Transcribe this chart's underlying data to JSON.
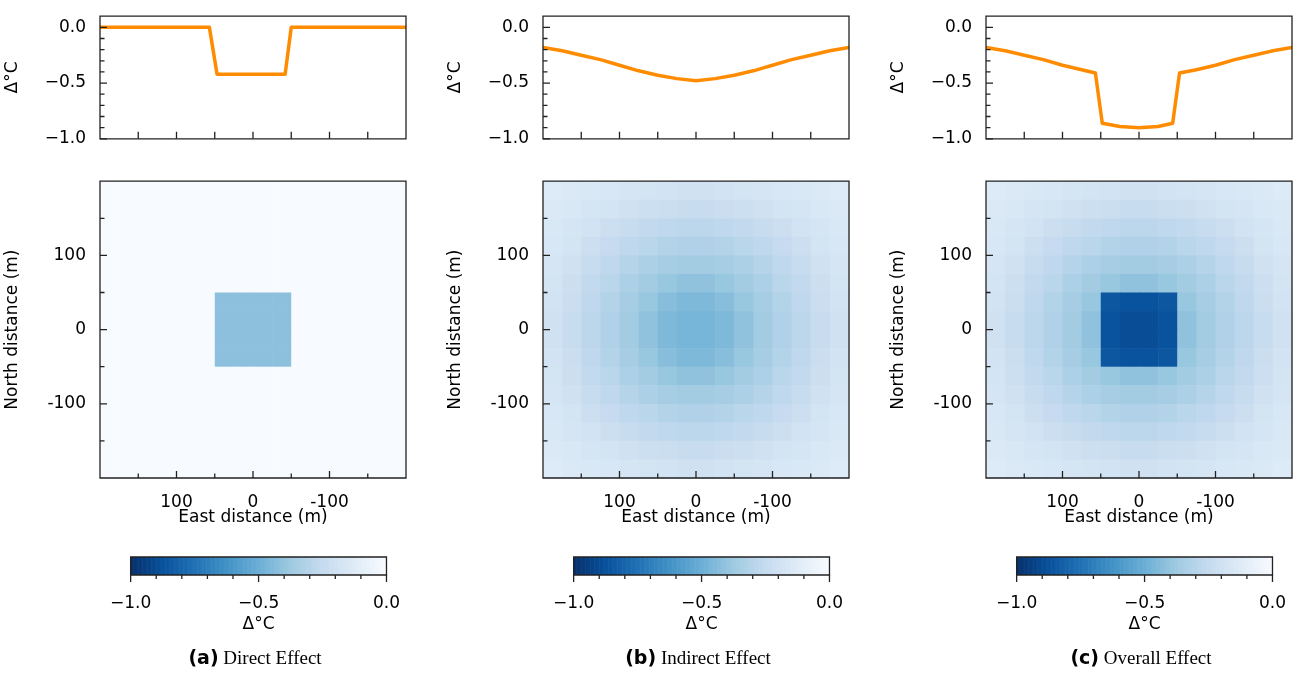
{
  "chart_data": [
    {
      "type": "line",
      "ylabel": "Δ°C",
      "x": [
        200,
        57,
        47,
        -42,
        -50,
        -200
      ],
      "values": [
        0,
        0,
        -0.42,
        -0.42,
        0,
        0
      ],
      "color": "#ff8c00",
      "xlim": [
        200,
        -200
      ],
      "ylim": [
        -1,
        0.1
      ],
      "xticks": [
        {
          "value": 150,
          "label": null
        },
        100,
        {
          "value": 50,
          "label": null
        },
        0,
        {
          "value": -50,
          "label": null
        },
        -100,
        {
          "value": -150,
          "label": null
        }
      ],
      "yticks": [
        {
          "value": 0,
          "label": "0.0"
        },
        {
          "value": -0.1,
          "label": null
        },
        {
          "value": -0.2,
          "label": null
        },
        {
          "value": -0.3,
          "label": null
        },
        {
          "value": -0.4,
          "label": null
        },
        {
          "value": -0.5,
          "label": "−0.5"
        },
        {
          "value": -0.6,
          "label": null
        },
        {
          "value": -0.7,
          "label": null
        },
        {
          "value": -0.8,
          "label": null
        },
        {
          "value": -0.9,
          "label": null
        },
        {
          "value": -1,
          "label": "−1.0"
        }
      ],
      "tick_labels": "y"
    },
    {
      "type": "heatmap",
      "title": "(a) Direct Effect",
      "xlabel": "East distance (m)",
      "ylabel": "North distance (m)",
      "clabel": "Δ°C",
      "x": [
        187.5,
        162.5,
        137.5,
        112.5,
        87.5,
        62.5,
        37.5,
        12.5,
        -12.5,
        -37.5,
        -62.5,
        -87.5,
        -112.5,
        -137.5,
        -162.5,
        -187.5
      ],
      "y": [
        187.5,
        162.5,
        137.5,
        112.5,
        87.5,
        62.5,
        37.5,
        12.5,
        -12.5,
        -37.5,
        -62.5,
        -87.5,
        -112.5,
        -137.5,
        -162.5,
        -187.5
      ],
      "xlim": [
        200,
        -200
      ],
      "ylim": [
        -200,
        200
      ],
      "xticks": [
        {
          "value": 150,
          "label": null
        },
        100,
        {
          "value": 50,
          "label": null
        },
        0,
        {
          "value": -50,
          "label": null
        },
        -100,
        {
          "value": -150,
          "label": null
        }
      ],
      "yticks": [
        {
          "value": 150,
          "label": null
        },
        100,
        {
          "value": 50,
          "label": null
        },
        0,
        {
          "value": -50,
          "label": null
        },
        -100,
        {
          "value": -150,
          "label": null
        }
      ],
      "clim": [
        -1,
        0
      ],
      "cticks": [
        {
          "value": -1,
          "label": "−1.0"
        },
        {
          "value": -0.9,
          "label": null
        },
        {
          "value": -0.8,
          "label": null
        },
        {
          "value": -0.7,
          "label": null
        },
        {
          "value": -0.6,
          "label": null
        },
        {
          "value": -0.5,
          "label": "−0.5"
        },
        {
          "value": -0.4,
          "label": null
        },
        {
          "value": -0.3,
          "label": null
        },
        {
          "value": -0.2,
          "label": null
        },
        {
          "value": -0.1,
          "label": null
        },
        {
          "value": 0,
          "label": "0.0"
        }
      ],
      "cells": [
        [
          0,
          0,
          0,
          0,
          0,
          0,
          0,
          0,
          0,
          0,
          0,
          0,
          0,
          0,
          0,
          0
        ],
        [
          0,
          0,
          0,
          0,
          0,
          0,
          0,
          0,
          0,
          0,
          0,
          0,
          0,
          0,
          0,
          0
        ],
        [
          0,
          0,
          0,
          0,
          0,
          0,
          0,
          0,
          0,
          0,
          0,
          0,
          0,
          0,
          0,
          0
        ],
        [
          0,
          0,
          0,
          0,
          0,
          0,
          0,
          0,
          0,
          0,
          0,
          0,
          0,
          0,
          0,
          0
        ],
        [
          0,
          0,
          0,
          0,
          0,
          0,
          0,
          0,
          0,
          0,
          0,
          0,
          0,
          0,
          0,
          0
        ],
        [
          0,
          0,
          0,
          0,
          0,
          0,
          0,
          0,
          0,
          0,
          0,
          0,
          0,
          0,
          0,
          0
        ],
        [
          0,
          0,
          0,
          0,
          0,
          0,
          -0.42,
          -0.42,
          -0.42,
          -0.42,
          0,
          0,
          0,
          0,
          0,
          0
        ],
        [
          0,
          0,
          0,
          0,
          0,
          0,
          -0.42,
          -0.42,
          -0.42,
          -0.42,
          0,
          0,
          0,
          0,
          0,
          0
        ],
        [
          0,
          0,
          0,
          0,
          0,
          0,
          -0.42,
          -0.42,
          -0.42,
          -0.42,
          0,
          0,
          0,
          0,
          0,
          0
        ],
        [
          0,
          0,
          0,
          0,
          0,
          0,
          -0.42,
          -0.42,
          -0.42,
          -0.42,
          0,
          0,
          0,
          0,
          0,
          0
        ],
        [
          0,
          0,
          0,
          0,
          0,
          0,
          0,
          0,
          0,
          0,
          0,
          0,
          0,
          0,
          0,
          0
        ],
        [
          0,
          0,
          0,
          0,
          0,
          0,
          0,
          0,
          0,
          0,
          0,
          0,
          0,
          0,
          0,
          0
        ],
        [
          0,
          0,
          0,
          0,
          0,
          0,
          0,
          0,
          0,
          0,
          0,
          0,
          0,
          0,
          0,
          0
        ],
        [
          0,
          0,
          0,
          0,
          0,
          0,
          0,
          0,
          0,
          0,
          0,
          0,
          0,
          0,
          0,
          0
        ],
        [
          0,
          0,
          0,
          0,
          0,
          0,
          0,
          0,
          0,
          0,
          0,
          0,
          0,
          0,
          0,
          0
        ],
        [
          0,
          0,
          0,
          0,
          0,
          0,
          0,
          0,
          0,
          0,
          0,
          0,
          0,
          0,
          0,
          0
        ]
      ]
    },
    {
      "type": "line",
      "ylabel": "Δ°C",
      "x": [
        200,
        175,
        150,
        125,
        100,
        75,
        50,
        25,
        0,
        -25,
        -50,
        -75,
        -100,
        -125,
        -150,
        -175,
        -200
      ],
      "values": [
        -0.18,
        -0.21,
        -0.25,
        -0.29,
        -0.34,
        -0.39,
        -0.43,
        -0.46,
        -0.48,
        -0.46,
        -0.43,
        -0.39,
        -0.34,
        -0.29,
        -0.25,
        -0.21,
        -0.18
      ],
      "color": "#ff8c00",
      "xlim": [
        200,
        -200
      ],
      "ylim": [
        -1,
        0.1
      ],
      "xticks": [
        {
          "value": 150,
          "label": null
        },
        100,
        {
          "value": 50,
          "label": null
        },
        0,
        {
          "value": -50,
          "label": null
        },
        -100,
        {
          "value": -150,
          "label": null
        }
      ],
      "yticks": [
        {
          "value": 0,
          "label": "0.0"
        },
        {
          "value": -0.1,
          "label": null
        },
        {
          "value": -0.2,
          "label": null
        },
        {
          "value": -0.3,
          "label": null
        },
        {
          "value": -0.4,
          "label": null
        },
        {
          "value": -0.5,
          "label": "−0.5"
        },
        {
          "value": -0.6,
          "label": null
        },
        {
          "value": -0.7,
          "label": null
        },
        {
          "value": -0.8,
          "label": null
        },
        {
          "value": -0.9,
          "label": null
        },
        {
          "value": -1,
          "label": "−1.0"
        }
      ],
      "tick_labels": "y"
    },
    {
      "type": "heatmap",
      "title": "(b) Indirect Effect",
      "xlabel": "East distance (m)",
      "ylabel": "North distance (m)",
      "clabel": "Δ°C",
      "x": [
        187.5,
        162.5,
        137.5,
        112.5,
        87.5,
        62.5,
        37.5,
        12.5,
        -12.5,
        -37.5,
        -62.5,
        -87.5,
        -112.5,
        -137.5,
        -162.5,
        -187.5
      ],
      "y": [
        187.5,
        162.5,
        137.5,
        112.5,
        87.5,
        62.5,
        37.5,
        12.5,
        -12.5,
        -37.5,
        -62.5,
        -87.5,
        -112.5,
        -137.5,
        -162.5,
        -187.5
      ],
      "xlim": [
        200,
        -200
      ],
      "ylim": [
        -200,
        200
      ],
      "xticks": [
        {
          "value": 150,
          "label": null
        },
        100,
        {
          "value": 50,
          "label": null
        },
        0,
        {
          "value": -50,
          "label": null
        },
        -100,
        {
          "value": -150,
          "label": null
        }
      ],
      "yticks": [
        {
          "value": 150,
          "label": null
        },
        100,
        {
          "value": 50,
          "label": null
        },
        0,
        {
          "value": -50,
          "label": null
        },
        -100,
        {
          "value": -150,
          "label": null
        }
      ],
      "clim": [
        -1,
        0
      ],
      "cticks": [
        {
          "value": -1,
          "label": "−1.0"
        },
        {
          "value": -0.9,
          "label": null
        },
        {
          "value": -0.8,
          "label": null
        },
        {
          "value": -0.7,
          "label": null
        },
        {
          "value": -0.6,
          "label": null
        },
        {
          "value": -0.5,
          "label": "−0.5"
        },
        {
          "value": -0.4,
          "label": null
        },
        {
          "value": -0.3,
          "label": null
        },
        {
          "value": -0.2,
          "label": null
        },
        {
          "value": -0.1,
          "label": null
        },
        {
          "value": 0,
          "label": "0.0"
        }
      ],
      "cells": [
        [
          -0.13,
          -0.14,
          -0.15,
          -0.16,
          -0.17,
          -0.18,
          -0.19,
          -0.2,
          -0.2,
          -0.19,
          -0.18,
          -0.17,
          -0.16,
          -0.15,
          -0.14,
          -0.13
        ],
        [
          -0.14,
          -0.15,
          -0.17,
          -0.18,
          -0.2,
          -0.22,
          -0.23,
          -0.24,
          -0.24,
          -0.23,
          -0.22,
          -0.2,
          -0.18,
          -0.17,
          -0.15,
          -0.14
        ],
        [
          -0.15,
          -0.17,
          -0.19,
          -0.22,
          -0.24,
          -0.26,
          -0.27,
          -0.28,
          -0.28,
          -0.27,
          -0.26,
          -0.24,
          -0.22,
          -0.19,
          -0.17,
          -0.15
        ],
        [
          -0.16,
          -0.18,
          -0.22,
          -0.25,
          -0.27,
          -0.29,
          -0.31,
          -0.32,
          -0.32,
          -0.31,
          -0.29,
          -0.27,
          -0.25,
          -0.22,
          -0.18,
          -0.16
        ],
        [
          -0.17,
          -0.2,
          -0.24,
          -0.27,
          -0.3,
          -0.33,
          -0.35,
          -0.36,
          -0.36,
          -0.35,
          -0.33,
          -0.3,
          -0.27,
          -0.24,
          -0.2,
          -0.17
        ],
        [
          -0.18,
          -0.22,
          -0.26,
          -0.29,
          -0.33,
          -0.36,
          -0.39,
          -0.41,
          -0.41,
          -0.39,
          -0.36,
          -0.33,
          -0.29,
          -0.26,
          -0.22,
          -0.18
        ],
        [
          -0.19,
          -0.23,
          -0.27,
          -0.31,
          -0.35,
          -0.39,
          -0.43,
          -0.45,
          -0.45,
          -0.43,
          -0.39,
          -0.35,
          -0.31,
          -0.27,
          -0.23,
          -0.19
        ],
        [
          -0.2,
          -0.24,
          -0.28,
          -0.32,
          -0.36,
          -0.41,
          -0.45,
          -0.47,
          -0.47,
          -0.45,
          -0.41,
          -0.36,
          -0.32,
          -0.28,
          -0.24,
          -0.2
        ],
        [
          -0.2,
          -0.24,
          -0.28,
          -0.32,
          -0.36,
          -0.41,
          -0.45,
          -0.47,
          -0.47,
          -0.45,
          -0.41,
          -0.36,
          -0.32,
          -0.28,
          -0.24,
          -0.2
        ],
        [
          -0.19,
          -0.23,
          -0.27,
          -0.31,
          -0.35,
          -0.39,
          -0.43,
          -0.45,
          -0.45,
          -0.43,
          -0.39,
          -0.35,
          -0.31,
          -0.27,
          -0.23,
          -0.19
        ],
        [
          -0.18,
          -0.22,
          -0.26,
          -0.29,
          -0.33,
          -0.36,
          -0.39,
          -0.41,
          -0.41,
          -0.39,
          -0.36,
          -0.33,
          -0.29,
          -0.26,
          -0.22,
          -0.18
        ],
        [
          -0.17,
          -0.2,
          -0.24,
          -0.27,
          -0.3,
          -0.33,
          -0.35,
          -0.36,
          -0.36,
          -0.35,
          -0.33,
          -0.3,
          -0.27,
          -0.24,
          -0.2,
          -0.17
        ],
        [
          -0.16,
          -0.18,
          -0.22,
          -0.25,
          -0.27,
          -0.29,
          -0.31,
          -0.32,
          -0.32,
          -0.31,
          -0.29,
          -0.27,
          -0.25,
          -0.22,
          -0.18,
          -0.16
        ],
        [
          -0.15,
          -0.17,
          -0.19,
          -0.22,
          -0.24,
          -0.26,
          -0.27,
          -0.28,
          -0.28,
          -0.27,
          -0.26,
          -0.24,
          -0.22,
          -0.19,
          -0.17,
          -0.15
        ],
        [
          -0.14,
          -0.15,
          -0.17,
          -0.18,
          -0.2,
          -0.22,
          -0.23,
          -0.24,
          -0.24,
          -0.23,
          -0.22,
          -0.2,
          -0.18,
          -0.17,
          -0.15,
          -0.14
        ],
        [
          -0.13,
          -0.14,
          -0.15,
          -0.16,
          -0.17,
          -0.18,
          -0.19,
          -0.2,
          -0.2,
          -0.19,
          -0.18,
          -0.17,
          -0.16,
          -0.15,
          -0.14,
          -0.13
        ]
      ]
    },
    {
      "type": "line",
      "ylabel": "Δ°C",
      "x": [
        200,
        175,
        150,
        125,
        100,
        75,
        57,
        48,
        25,
        0,
        -25,
        -44,
        -53,
        -75,
        -100,
        -125,
        -150,
        -175,
        -200
      ],
      "values": [
        -0.18,
        -0.21,
        -0.25,
        -0.29,
        -0.34,
        -0.38,
        -0.41,
        -0.86,
        -0.89,
        -0.9,
        -0.89,
        -0.86,
        -0.41,
        -0.38,
        -0.34,
        -0.29,
        -0.25,
        -0.21,
        -0.18
      ],
      "color": "#ff8c00",
      "xlim": [
        200,
        -200
      ],
      "ylim": [
        -1,
        0.1
      ],
      "xticks": [
        {
          "value": 150,
          "label": null
        },
        100,
        {
          "value": 50,
          "label": null
        },
        0,
        {
          "value": -50,
          "label": null
        },
        -100,
        {
          "value": -150,
          "label": null
        }
      ],
      "yticks": [
        {
          "value": 0,
          "label": "0.0"
        },
        {
          "value": -0.1,
          "label": null
        },
        {
          "value": -0.2,
          "label": null
        },
        {
          "value": -0.3,
          "label": null
        },
        {
          "value": -0.4,
          "label": null
        },
        {
          "value": -0.5,
          "label": "−0.5"
        },
        {
          "value": -0.6,
          "label": null
        },
        {
          "value": -0.7,
          "label": null
        },
        {
          "value": -0.8,
          "label": null
        },
        {
          "value": -0.9,
          "label": null
        },
        {
          "value": -1,
          "label": "−1.0"
        }
      ],
      "tick_labels": "y"
    },
    {
      "type": "heatmap",
      "title": "(c) Overall Effect",
      "xlabel": "East distance (m)",
      "ylabel": "North distance (m)",
      "clabel": "Δ°C",
      "x": [
        187.5,
        162.5,
        137.5,
        112.5,
        87.5,
        62.5,
        37.5,
        12.5,
        -12.5,
        -37.5,
        -62.5,
        -87.5,
        -112.5,
        -137.5,
        -162.5,
        -187.5
      ],
      "y": [
        187.5,
        162.5,
        137.5,
        112.5,
        87.5,
        62.5,
        37.5,
        12.5,
        -12.5,
        -37.5,
        -62.5,
        -87.5,
        -112.5,
        -137.5,
        -162.5,
        -187.5
      ],
      "xlim": [
        200,
        -200
      ],
      "ylim": [
        -200,
        200
      ],
      "xticks": [
        {
          "value": 150,
          "label": null
        },
        100,
        {
          "value": 50,
          "label": null
        },
        0,
        {
          "value": -50,
          "label": null
        },
        -100,
        {
          "value": -150,
          "label": null
        }
      ],
      "yticks": [
        {
          "value": 150,
          "label": null
        },
        100,
        {
          "value": 50,
          "label": null
        },
        0,
        {
          "value": -50,
          "label": null
        },
        -100,
        {
          "value": -150,
          "label": null
        }
      ],
      "clim": [
        -1,
        0
      ],
      "cticks": [
        {
          "value": -1,
          "label": "−1.0"
        },
        {
          "value": -0.9,
          "label": null
        },
        {
          "value": -0.8,
          "label": null
        },
        {
          "value": -0.7,
          "label": null
        },
        {
          "value": -0.6,
          "label": null
        },
        {
          "value": -0.5,
          "label": "−0.5"
        },
        {
          "value": -0.4,
          "label": null
        },
        {
          "value": -0.3,
          "label": null
        },
        {
          "value": -0.2,
          "label": null
        },
        {
          "value": -0.1,
          "label": null
        },
        {
          "value": 0,
          "label": "0.0"
        }
      ],
      "cells": [
        [
          -0.13,
          -0.14,
          -0.15,
          -0.16,
          -0.17,
          -0.18,
          -0.19,
          -0.2,
          -0.2,
          -0.19,
          -0.18,
          -0.17,
          -0.16,
          -0.15,
          -0.14,
          -0.13
        ],
        [
          -0.14,
          -0.15,
          -0.17,
          -0.18,
          -0.2,
          -0.22,
          -0.23,
          -0.24,
          -0.24,
          -0.23,
          -0.22,
          -0.2,
          -0.18,
          -0.17,
          -0.15,
          -0.14
        ],
        [
          -0.15,
          -0.17,
          -0.19,
          -0.22,
          -0.24,
          -0.26,
          -0.27,
          -0.28,
          -0.28,
          -0.27,
          -0.26,
          -0.24,
          -0.22,
          -0.19,
          -0.17,
          -0.15
        ],
        [
          -0.16,
          -0.18,
          -0.22,
          -0.25,
          -0.27,
          -0.29,
          -0.31,
          -0.32,
          -0.32,
          -0.31,
          -0.29,
          -0.27,
          -0.25,
          -0.22,
          -0.18,
          -0.16
        ],
        [
          -0.17,
          -0.2,
          -0.24,
          -0.27,
          -0.3,
          -0.33,
          -0.35,
          -0.36,
          -0.36,
          -0.35,
          -0.33,
          -0.3,
          -0.27,
          -0.24,
          -0.2,
          -0.17
        ],
        [
          -0.18,
          -0.22,
          -0.26,
          -0.29,
          -0.33,
          -0.36,
          -0.39,
          -0.41,
          -0.41,
          -0.39,
          -0.36,
          -0.33,
          -0.29,
          -0.26,
          -0.22,
          -0.18
        ],
        [
          -0.19,
          -0.23,
          -0.27,
          -0.31,
          -0.35,
          -0.39,
          -0.85,
          -0.87,
          -0.87,
          -0.85,
          -0.39,
          -0.35,
          -0.31,
          -0.27,
          -0.23,
          -0.19
        ],
        [
          -0.2,
          -0.24,
          -0.28,
          -0.32,
          -0.36,
          -0.41,
          -0.87,
          -0.89,
          -0.89,
          -0.87,
          -0.41,
          -0.36,
          -0.32,
          -0.28,
          -0.24,
          -0.2
        ],
        [
          -0.2,
          -0.24,
          -0.28,
          -0.32,
          -0.36,
          -0.41,
          -0.87,
          -0.89,
          -0.89,
          -0.87,
          -0.41,
          -0.36,
          -0.32,
          -0.28,
          -0.24,
          -0.2
        ],
        [
          -0.19,
          -0.23,
          -0.27,
          -0.31,
          -0.35,
          -0.39,
          -0.85,
          -0.87,
          -0.87,
          -0.85,
          -0.39,
          -0.35,
          -0.31,
          -0.27,
          -0.23,
          -0.19
        ],
        [
          -0.18,
          -0.22,
          -0.26,
          -0.29,
          -0.33,
          -0.36,
          -0.39,
          -0.41,
          -0.41,
          -0.39,
          -0.36,
          -0.33,
          -0.29,
          -0.26,
          -0.22,
          -0.18
        ],
        [
          -0.17,
          -0.2,
          -0.24,
          -0.27,
          -0.3,
          -0.33,
          -0.35,
          -0.36,
          -0.36,
          -0.35,
          -0.33,
          -0.3,
          -0.27,
          -0.24,
          -0.2,
          -0.17
        ],
        [
          -0.16,
          -0.18,
          -0.22,
          -0.25,
          -0.27,
          -0.29,
          -0.31,
          -0.32,
          -0.32,
          -0.31,
          -0.29,
          -0.27,
          -0.25,
          -0.22,
          -0.18,
          -0.16
        ],
        [
          -0.15,
          -0.17,
          -0.19,
          -0.22,
          -0.24,
          -0.26,
          -0.27,
          -0.28,
          -0.28,
          -0.27,
          -0.26,
          -0.24,
          -0.22,
          -0.19,
          -0.17,
          -0.15
        ],
        [
          -0.14,
          -0.15,
          -0.17,
          -0.18,
          -0.2,
          -0.22,
          -0.23,
          -0.24,
          -0.24,
          -0.23,
          -0.22,
          -0.2,
          -0.18,
          -0.17,
          -0.15,
          -0.14
        ],
        [
          -0.13,
          -0.14,
          -0.15,
          -0.16,
          -0.17,
          -0.18,
          -0.19,
          -0.2,
          -0.2,
          -0.19,
          -0.18,
          -0.17,
          -0.16,
          -0.15,
          -0.14,
          -0.13
        ]
      ]
    }
  ]
}
